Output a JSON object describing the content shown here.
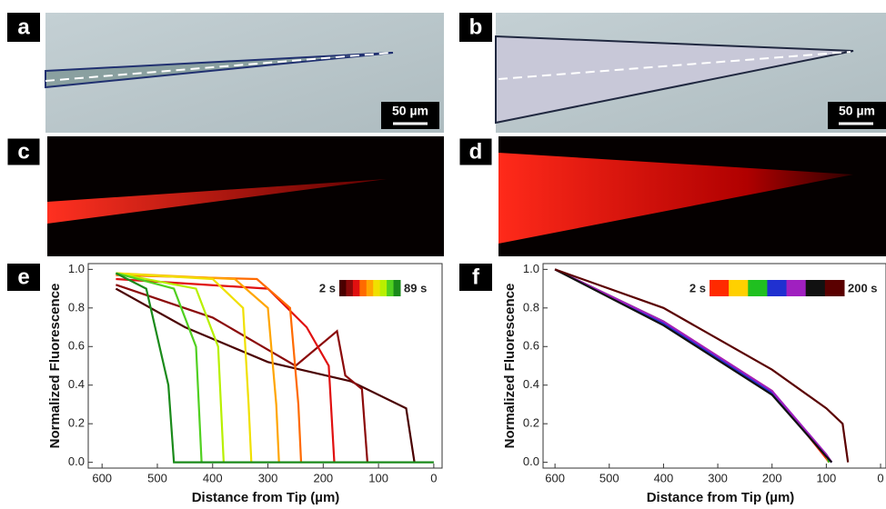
{
  "panels": [
    {
      "label": "a",
      "scale_bar": "50 µm"
    },
    {
      "label": "b",
      "scale_bar": "50 µm"
    },
    {
      "label": "c"
    },
    {
      "label": "d"
    }
  ],
  "chart_data": [
    {
      "type": "line",
      "panel_label": "e",
      "y_label": "Normalized Fluorescence",
      "x_label": "Distance from  Tip (µm)",
      "colorbar_labels": [
        "2 s",
        "89 s"
      ],
      "xlim": [
        625,
        -15
      ],
      "ylim": [
        -0.03,
        1.03
      ],
      "xticks": [
        600,
        500,
        400,
        300,
        200,
        100,
        0
      ],
      "yticks": [
        {
          "value": 0,
          "label": "0.0"
        },
        0.2,
        0.4,
        0.6,
        0.8,
        {
          "value": 1,
          "label": "1.0"
        }
      ],
      "series": [
        {
          "color": "#4a0000",
          "x": [
            575,
            450,
            300,
            150,
            50,
            35
          ],
          "values": [
            0.9,
            0.7,
            0.52,
            0.42,
            0.28,
            0.0
          ]
        },
        {
          "color": "#8b0a0a",
          "x": [
            575,
            400,
            250,
            175,
            160,
            130,
            120
          ],
          "values": [
            0.92,
            0.75,
            0.5,
            0.68,
            0.45,
            0.38,
            0.0
          ]
        },
        {
          "color": "#e01010",
          "x": [
            575,
            300,
            230,
            190,
            180
          ],
          "values": [
            0.95,
            0.9,
            0.7,
            0.5,
            0.0
          ]
        },
        {
          "color": "#ff6a00",
          "x": [
            575,
            320,
            260,
            245,
            240
          ],
          "values": [
            0.97,
            0.95,
            0.8,
            0.3,
            0.0
          ]
        },
        {
          "color": "#ffa500",
          "x": [
            575,
            360,
            300,
            285,
            280
          ],
          "values": [
            0.98,
            0.95,
            0.8,
            0.3,
            0.0
          ]
        },
        {
          "color": "#f0e000",
          "x": [
            575,
            400,
            345,
            335,
            330
          ],
          "values": [
            0.98,
            0.95,
            0.8,
            0.3,
            0.0
          ]
        },
        {
          "color": "#b8f000",
          "x": [
            575,
            430,
            390,
            380
          ],
          "values": [
            0.98,
            0.9,
            0.6,
            0.0
          ]
        },
        {
          "color": "#50d020",
          "x": [
            575,
            470,
            430,
            420
          ],
          "values": [
            0.98,
            0.9,
            0.6,
            0.0
          ]
        },
        {
          "color": "#1a8a1a",
          "x": [
            575,
            520,
            480,
            470,
            0
          ],
          "values": [
            0.98,
            0.9,
            0.4,
            0.0,
            0.0
          ]
        }
      ]
    },
    {
      "type": "line",
      "panel_label": "f",
      "y_label": "Normalized Fluorescence",
      "x_label": "Distance from  Tip (µm)",
      "colorbar_labels": [
        "2 s",
        "200 s"
      ],
      "xlim": [
        622,
        -10
      ],
      "ylim": [
        -0.03,
        1.03
      ],
      "xticks": [
        600,
        500,
        400,
        300,
        200,
        100,
        0
      ],
      "yticks": [
        {
          "value": 0,
          "label": "0.0"
        },
        0.2,
        0.4,
        0.6,
        0.8,
        {
          "value": 1,
          "label": "1.0"
        }
      ],
      "series": [
        {
          "color": "#ff2a00",
          "x": [
            600,
            400,
            200,
            100,
            95
          ],
          "values": [
            1.0,
            0.73,
            0.37,
            0.02,
            0.0
          ]
        },
        {
          "color": "#ffd000",
          "x": [
            600,
            400,
            200,
            100,
            95
          ],
          "values": [
            1.0,
            0.72,
            0.36,
            0.03,
            0.0
          ]
        },
        {
          "color": "#20c020",
          "x": [
            600,
            400,
            200,
            100,
            95
          ],
          "values": [
            1.0,
            0.73,
            0.35,
            0.04,
            0.0
          ]
        },
        {
          "color": "#2030d0",
          "x": [
            600,
            400,
            200,
            100,
            90
          ],
          "values": [
            1.0,
            0.72,
            0.36,
            0.03,
            0.0
          ]
        },
        {
          "color": "#a020c0",
          "x": [
            600,
            400,
            200,
            100,
            90
          ],
          "values": [
            1.0,
            0.73,
            0.37,
            0.04,
            0.0
          ]
        },
        {
          "color": "#111111",
          "x": [
            600,
            400,
            200,
            100,
            90
          ],
          "values": [
            1.0,
            0.71,
            0.35,
            0.03,
            0.0
          ]
        },
        {
          "color": "#5a0000",
          "x": [
            600,
            400,
            200,
            100,
            70,
            60
          ],
          "values": [
            1.0,
            0.8,
            0.48,
            0.28,
            0.2,
            0.0
          ]
        }
      ]
    }
  ]
}
